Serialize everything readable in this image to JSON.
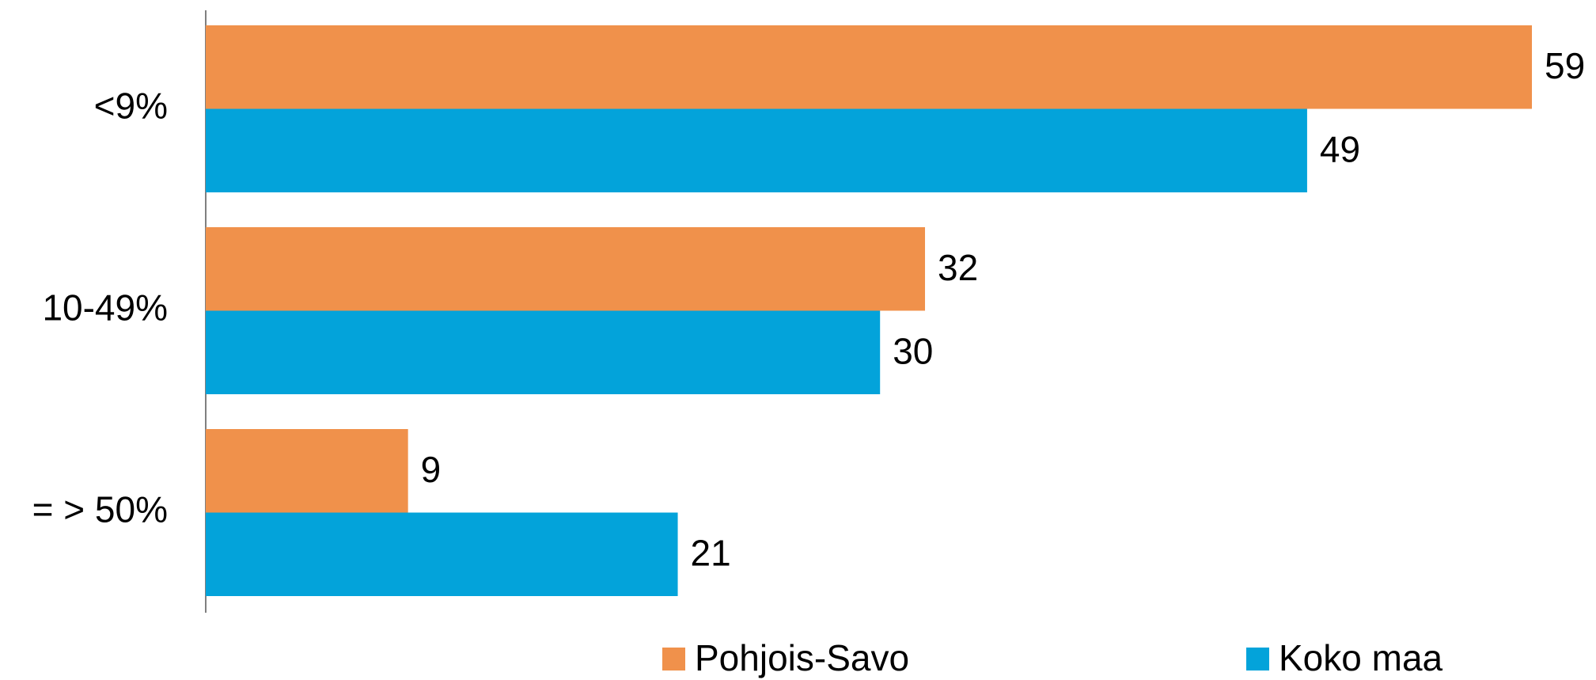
{
  "chart_data": {
    "type": "hbar",
    "categories": [
      "<9%",
      "10-49%",
      "= > 50%"
    ],
    "series": [
      {
        "name": "Pohjois-Savo",
        "color": "#f0914b",
        "values": [
          59,
          32,
          9
        ]
      },
      {
        "name": "Koko maa",
        "color": "#03a3da",
        "values": [
          49,
          30,
          21
        ]
      }
    ]
  }
}
